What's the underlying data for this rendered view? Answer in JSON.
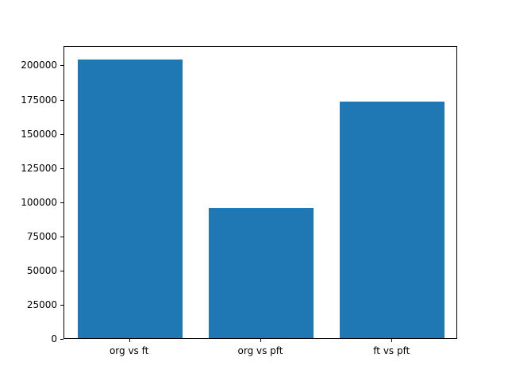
{
  "chart_data": {
    "type": "bar",
    "categories": [
      "org vs ft",
      "org vs pft",
      "ft vs pft"
    ],
    "values": [
      204000,
      95000,
      173000
    ],
    "title": "",
    "xlabel": "",
    "ylabel": "",
    "ylim": [
      0,
      214200
    ],
    "yticks": [
      0,
      25000,
      50000,
      75000,
      100000,
      125000,
      150000,
      175000,
      200000
    ],
    "bar_color": "#1f77b4",
    "bar_width_fraction": 0.8,
    "grid": false,
    "legend": false,
    "background_color": "#ffffff",
    "axis_color": "#000000"
  }
}
